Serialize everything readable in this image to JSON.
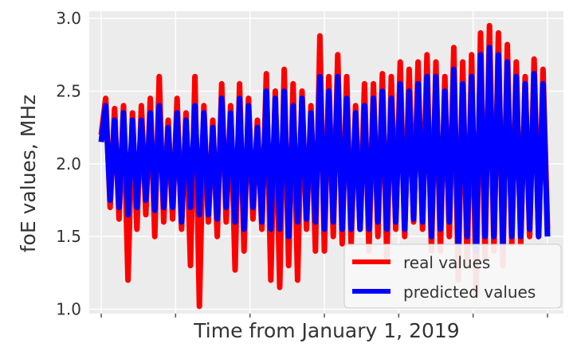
{
  "chart_data": {
    "type": "line",
    "title": "",
    "xlabel": "Time from January 1, 2019",
    "ylabel": "foE values, MHz",
    "ylim": [
      0.97,
      3.05
    ],
    "yticks": [
      1.0,
      1.5,
      2.0,
      2.5,
      3.0
    ],
    "ytick_labels": [
      "1.0",
      "1.5",
      "2.0",
      "2.5",
      "3.0"
    ],
    "xlim": [
      0,
      300
    ],
    "xticks": [
      0,
      50,
      100,
      150,
      200,
      250,
      300
    ],
    "grid": true,
    "legend_position": "bottom-right",
    "x": [
      0,
      3,
      6,
      9,
      12,
      15,
      18,
      21,
      24,
      27,
      30,
      33,
      36,
      39,
      42,
      45,
      48,
      51,
      54,
      57,
      60,
      63,
      66,
      69,
      72,
      75,
      78,
      81,
      84,
      87,
      90,
      93,
      96,
      99,
      102,
      105,
      108,
      111,
      114,
      117,
      120,
      123,
      126,
      129,
      132,
      135,
      138,
      141,
      144,
      147,
      150,
      153,
      156,
      159,
      162,
      165,
      168,
      171,
      174,
      177,
      180,
      183,
      186,
      189,
      192,
      195,
      198,
      201,
      204,
      207,
      210,
      213,
      216,
      219,
      222,
      225,
      228,
      231,
      234,
      237,
      240,
      243,
      246,
      249,
      252,
      255,
      258,
      261,
      264,
      267,
      270,
      273,
      276,
      279,
      282,
      285,
      288,
      291,
      294,
      297,
      300
    ],
    "series": [
      {
        "name": "real values",
        "color": "#ff0000",
        "values": [
          2.2,
          2.45,
          1.7,
          2.38,
          1.62,
          2.4,
          1.2,
          2.35,
          1.55,
          2.4,
          1.65,
          2.45,
          1.5,
          2.6,
          1.6,
          2.3,
          1.62,
          2.45,
          1.55,
          2.35,
          1.3,
          2.6,
          1.02,
          2.4,
          1.6,
          2.3,
          1.5,
          2.55,
          1.6,
          2.4,
          1.27,
          2.55,
          1.4,
          2.45,
          1.62,
          2.3,
          1.55,
          2.62,
          1.2,
          2.5,
          1.15,
          2.65,
          1.3,
          2.55,
          1.2,
          2.5,
          1.55,
          2.4,
          1.4,
          2.88,
          1.4,
          2.6,
          1.5,
          2.75,
          1.45,
          2.6,
          1.45,
          2.4,
          1.55,
          2.55,
          1.4,
          2.55,
          1.5,
          2.62,
          1.35,
          2.6,
          1.55,
          2.7,
          1.5,
          2.65,
          1.6,
          2.7,
          1.55,
          2.75,
          1.4,
          2.7,
          1.4,
          2.6,
          1.5,
          2.8,
          1.2,
          2.7,
          1.3,
          2.75,
          1.1,
          2.9,
          1.35,
          2.95,
          1.4,
          2.9,
          1.3,
          2.82,
          1.45,
          2.7,
          1.45,
          2.6,
          1.5,
          2.72,
          1.5,
          2.65,
          1.55
        ]
      },
      {
        "name": "predicted values",
        "color": "#0000ff",
        "values": [
          2.15,
          2.4,
          1.75,
          2.3,
          1.7,
          2.35,
          1.65,
          2.3,
          1.7,
          2.3,
          1.75,
          2.35,
          1.68,
          2.4,
          1.7,
          2.25,
          1.7,
          2.35,
          1.6,
          2.3,
          1.7,
          2.4,
          1.65,
          2.35,
          1.65,
          2.25,
          1.62,
          2.45,
          1.7,
          2.35,
          1.6,
          2.45,
          1.55,
          2.4,
          1.7,
          2.25,
          1.6,
          2.5,
          1.55,
          2.45,
          1.55,
          2.5,
          1.5,
          2.4,
          1.6,
          2.45,
          1.62,
          2.35,
          1.6,
          2.6,
          1.55,
          2.5,
          1.6,
          2.6,
          1.55,
          2.45,
          1.55,
          2.35,
          1.55,
          2.4,
          1.55,
          2.45,
          1.6,
          2.5,
          1.55,
          2.45,
          1.6,
          2.55,
          1.55,
          2.5,
          1.62,
          2.55,
          1.6,
          2.6,
          1.5,
          2.6,
          1.55,
          2.5,
          1.6,
          2.65,
          1.45,
          2.55,
          1.5,
          2.6,
          1.4,
          2.75,
          1.5,
          2.8,
          1.5,
          2.75,
          1.45,
          2.7,
          1.5,
          2.6,
          1.5,
          2.55,
          1.55,
          2.62,
          1.5,
          2.55,
          1.5
        ]
      }
    ]
  }
}
